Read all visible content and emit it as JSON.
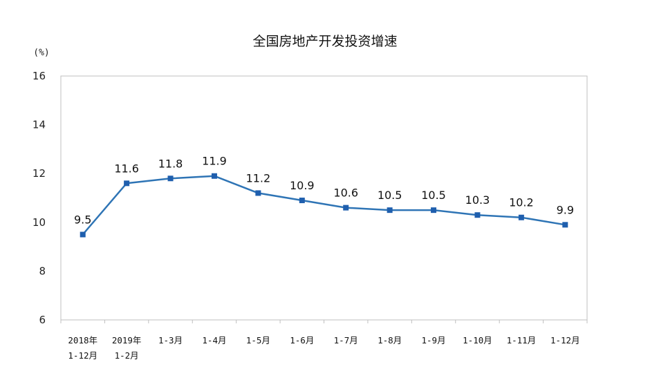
{
  "chart_data": {
    "type": "line",
    "title": "全国房地产开发投资增速",
    "y_unit": "(%)",
    "ylim": [
      6,
      16
    ],
    "yticks": [
      "6",
      "8",
      "10",
      "12",
      "14",
      "16"
    ],
    "categories": [
      [
        "2018年",
        "1-12月"
      ],
      [
        "2019年",
        "1-2月"
      ],
      [
        "1-3月"
      ],
      [
        "1-4月"
      ],
      [
        "1-5月"
      ],
      [
        "1-6月"
      ],
      [
        "1-7月"
      ],
      [
        "1-8月"
      ],
      [
        "1-9月"
      ],
      [
        "1-10月"
      ],
      [
        "1-11月"
      ],
      [
        "1-12月"
      ]
    ],
    "values": [
      9.5,
      11.6,
      11.8,
      11.9,
      11.2,
      10.9,
      10.6,
      10.5,
      10.5,
      10.3,
      10.2,
      9.9
    ],
    "data_labels": [
      "9.5",
      "11.6",
      "11.8",
      "11.9",
      "11.2",
      "10.9",
      "10.6",
      "10.5",
      "10.5",
      "10.3",
      "10.2",
      "9.9"
    ],
    "grid": false,
    "legend": "none",
    "colors": {
      "line": "#2e74b5",
      "marker": "#1f5fae",
      "axis": "#bfbfbf",
      "text": "#111111"
    }
  }
}
